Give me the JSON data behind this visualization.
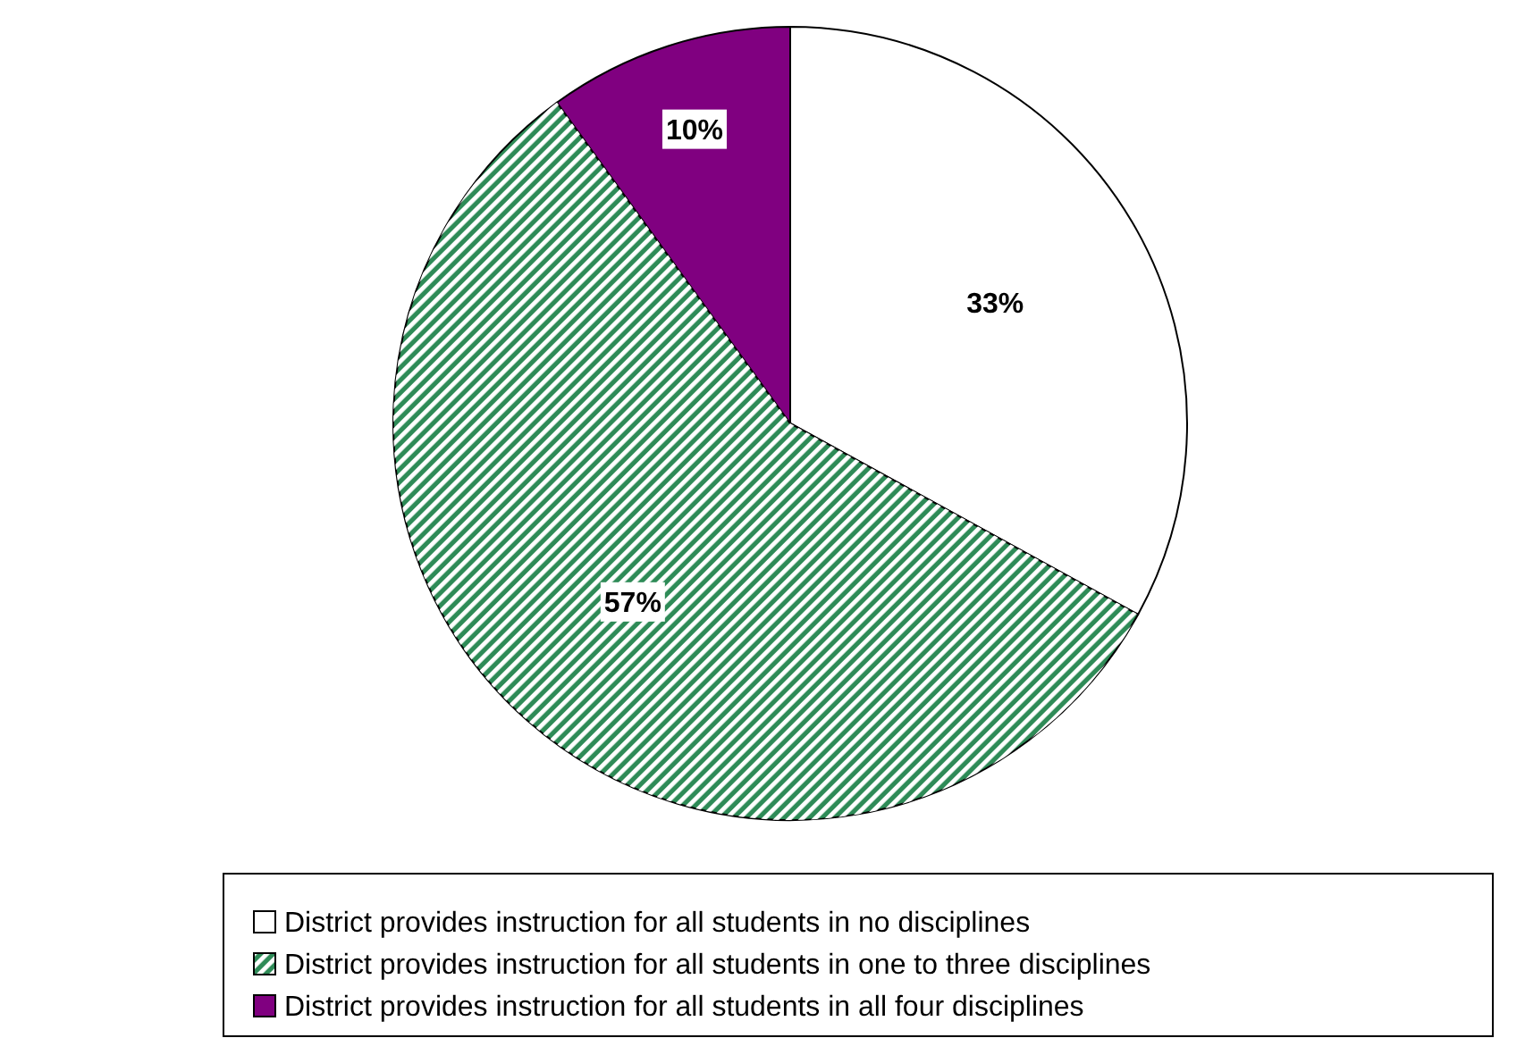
{
  "chart_data": {
    "type": "pie",
    "categories": [
      "District provides instruction for all students in no disciplines",
      "District provides instruction for all students in one to three disciplines",
      "District provides instruction for all students in all four disciplines"
    ],
    "values": [
      33,
      57,
      10
    ],
    "colors": [
      "#ffffff",
      "#2e8b57",
      "#800080"
    ],
    "value_labels": [
      "33%",
      "57%",
      "10%"
    ],
    "legend": "bottom"
  }
}
